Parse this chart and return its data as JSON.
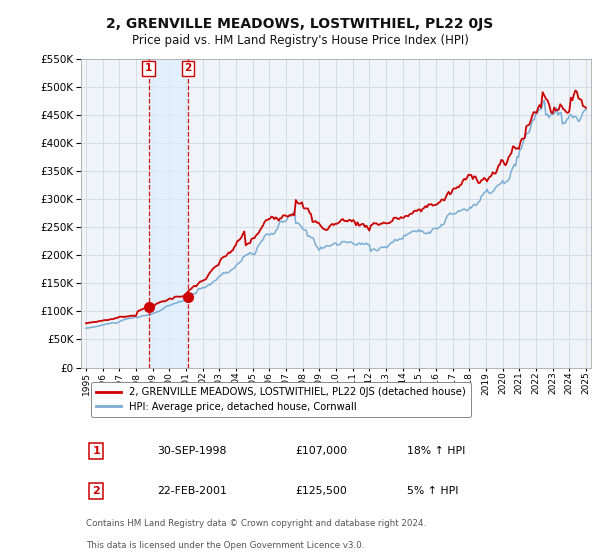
{
  "title": "2, GRENVILLE MEADOWS, LOSTWITHIEL, PL22 0JS",
  "subtitle": "Price paid vs. HM Land Registry's House Price Index (HPI)",
  "legend_line1": "2, GRENVILLE MEADOWS, LOSTWITHIEL, PL22 0JS (detached house)",
  "legend_line2": "HPI: Average price, detached house, Cornwall",
  "transaction1_label": "1",
  "transaction1_date": "30-SEP-1998",
  "transaction1_price": "£107,000",
  "transaction1_hpi": "18% ↑ HPI",
  "transaction1_year": 1998.75,
  "transaction1_value": 107000,
  "transaction2_label": "2",
  "transaction2_date": "22-FEB-2001",
  "transaction2_price": "£125,500",
  "transaction2_hpi": "5% ↑ HPI",
  "transaction2_year": 2001.13,
  "transaction2_value": 125500,
  "footnote1": "Contains HM Land Registry data © Crown copyright and database right 2024.",
  "footnote2": "This data is licensed under the Open Government Licence v3.0.",
  "ylim": [
    0,
    550000
  ],
  "yticks": [
    0,
    50000,
    100000,
    150000,
    200000,
    250000,
    300000,
    350000,
    400000,
    450000,
    500000,
    550000
  ],
  "red_color": "#cc0000",
  "blue_color": "#7aadd4",
  "background_plot": "#f0f4f8",
  "background_fig": "#ffffff",
  "grid_color": "#d0d8e0",
  "shade_color": "#ddeeff"
}
